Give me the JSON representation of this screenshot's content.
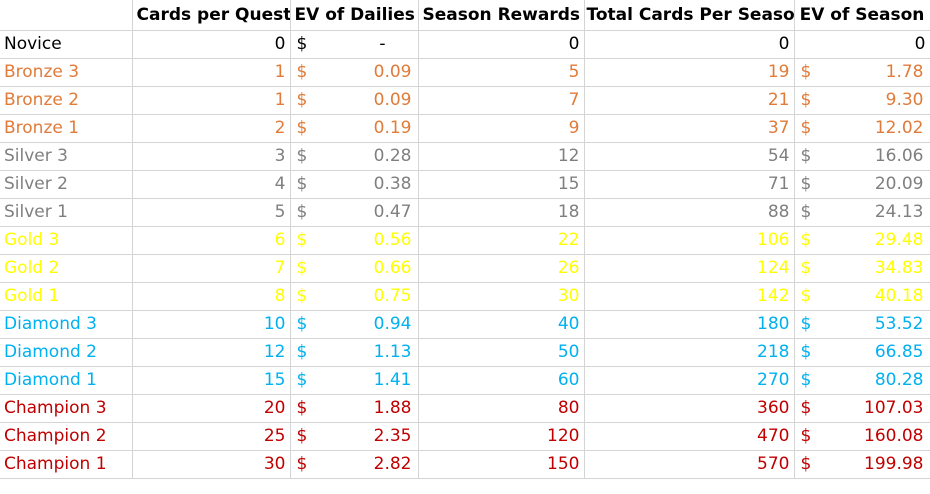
{
  "columns": [
    "",
    "Cards per Quest",
    "EV of Dailies",
    "Season Rewards",
    "Total Cards Per Season",
    "EV of Season"
  ],
  "currency_symbol": "$",
  "tier_colors": {
    "novice": "#000000",
    "bronze": "#e07b39",
    "silver": "#7f7f7f",
    "gold": "#ffff00",
    "diamond": "#00b0f0",
    "champion": "#c00000"
  },
  "rows": [
    {
      "name": "Novice",
      "tier": "novice",
      "cards_per_quest": "0",
      "ev_dailies": "-",
      "season_rewards": "0",
      "total_cards": "0",
      "ev_season": "0"
    },
    {
      "name": "Bronze 3",
      "tier": "bronze",
      "cards_per_quest": "1",
      "ev_dailies": "0.09",
      "season_rewards": "5",
      "total_cards": "19",
      "ev_season": "1.78"
    },
    {
      "name": "Bronze 2",
      "tier": "bronze",
      "cards_per_quest": "1",
      "ev_dailies": "0.09",
      "season_rewards": "7",
      "total_cards": "21",
      "ev_season": "9.30"
    },
    {
      "name": "Bronze 1",
      "tier": "bronze",
      "cards_per_quest": "2",
      "ev_dailies": "0.19",
      "season_rewards": "9",
      "total_cards": "37",
      "ev_season": "12.02"
    },
    {
      "name": "Silver 3",
      "tier": "silver",
      "cards_per_quest": "3",
      "ev_dailies": "0.28",
      "season_rewards": "12",
      "total_cards": "54",
      "ev_season": "16.06"
    },
    {
      "name": "Silver 2",
      "tier": "silver",
      "cards_per_quest": "4",
      "ev_dailies": "0.38",
      "season_rewards": "15",
      "total_cards": "71",
      "ev_season": "20.09"
    },
    {
      "name": "Silver 1",
      "tier": "silver",
      "cards_per_quest": "5",
      "ev_dailies": "0.47",
      "season_rewards": "18",
      "total_cards": "88",
      "ev_season": "24.13"
    },
    {
      "name": "Gold 3",
      "tier": "gold",
      "cards_per_quest": "6",
      "ev_dailies": "0.56",
      "season_rewards": "22",
      "total_cards": "106",
      "ev_season": "29.48"
    },
    {
      "name": "Gold 2",
      "tier": "gold",
      "cards_per_quest": "7",
      "ev_dailies": "0.66",
      "season_rewards": "26",
      "total_cards": "124",
      "ev_season": "34.83"
    },
    {
      "name": "Gold 1",
      "tier": "gold",
      "cards_per_quest": "8",
      "ev_dailies": "0.75",
      "season_rewards": "30",
      "total_cards": "142",
      "ev_season": "40.18"
    },
    {
      "name": "Diamond 3",
      "tier": "diamond",
      "cards_per_quest": "10",
      "ev_dailies": "0.94",
      "season_rewards": "40",
      "total_cards": "180",
      "ev_season": "53.52"
    },
    {
      "name": "Diamond 2",
      "tier": "diamond",
      "cards_per_quest": "12",
      "ev_dailies": "1.13",
      "season_rewards": "50",
      "total_cards": "218",
      "ev_season": "66.85"
    },
    {
      "name": "Diamond 1",
      "tier": "diamond",
      "cards_per_quest": "15",
      "ev_dailies": "1.41",
      "season_rewards": "60",
      "total_cards": "270",
      "ev_season": "80.28"
    },
    {
      "name": "Champion 3",
      "tier": "champion",
      "cards_per_quest": "20",
      "ev_dailies": "1.88",
      "season_rewards": "80",
      "total_cards": "360",
      "ev_season": "107.03"
    },
    {
      "name": "Champion 2",
      "tier": "champion",
      "cards_per_quest": "25",
      "ev_dailies": "2.35",
      "season_rewards": "120",
      "total_cards": "470",
      "ev_season": "160.08"
    },
    {
      "name": "Champion 1",
      "tier": "champion",
      "cards_per_quest": "30",
      "ev_dailies": "2.82",
      "season_rewards": "150",
      "total_cards": "570",
      "ev_season": "199.98"
    }
  ]
}
